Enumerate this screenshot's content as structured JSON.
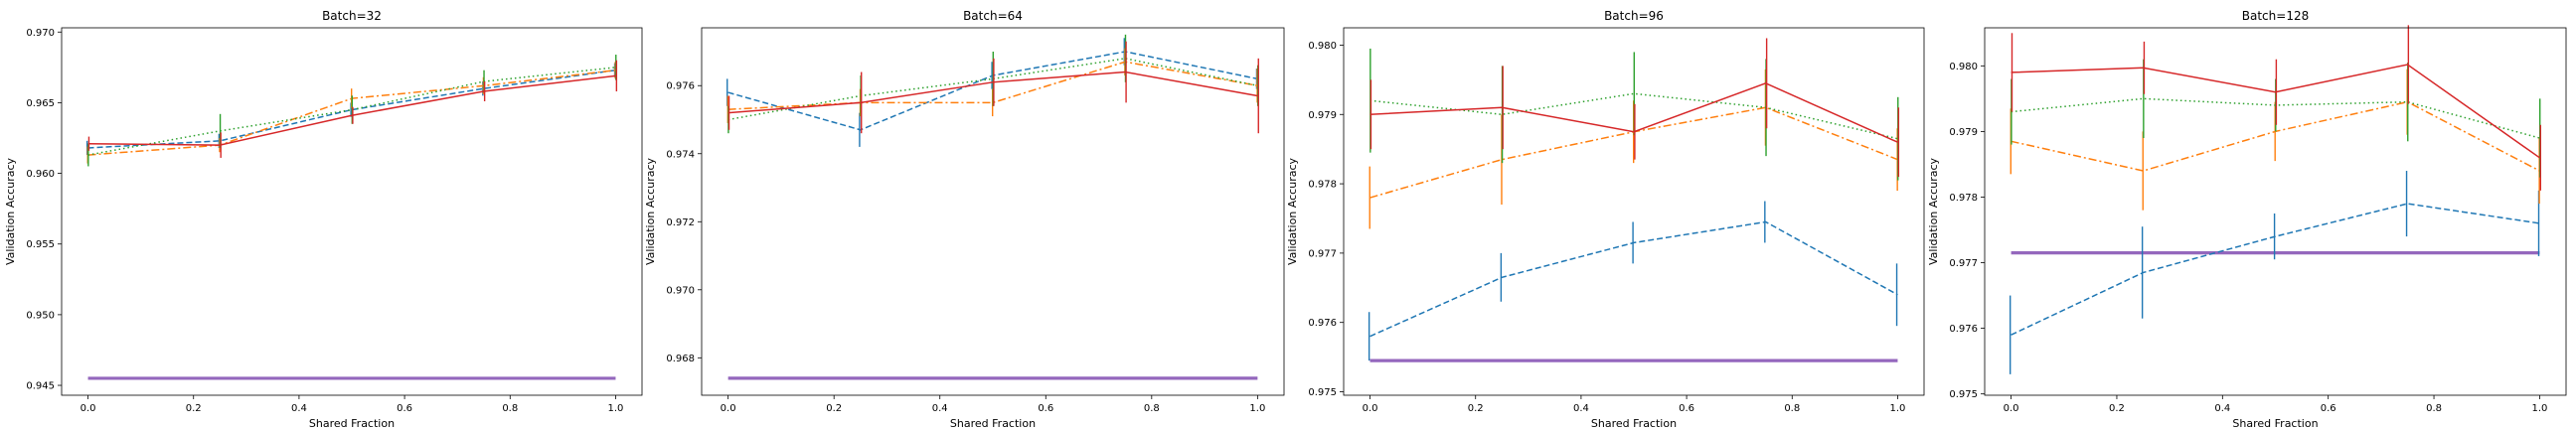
{
  "chart_data": [
    {
      "type": "line",
      "title": "Batch=32",
      "xlabel": "Shared Fraction",
      "ylabel": "Validation Accuracy",
      "x": [
        0.0,
        0.25,
        0.5,
        0.75,
        1.0
      ],
      "xticks": [
        "0.0",
        "0.2",
        "0.4",
        "0.6",
        "0.8",
        "1.0"
      ],
      "xtick_values": [
        0.0,
        0.2,
        0.4,
        0.6,
        0.8,
        1.0
      ],
      "yticks": [
        "0.945",
        "0.950",
        "0.955",
        "0.960",
        "0.965",
        "0.970"
      ],
      "ytick_values": [
        0.945,
        0.95,
        0.955,
        0.96,
        0.965,
        0.97
      ],
      "xlim": [
        -0.05,
        1.05
      ],
      "ylim": [
        0.9443,
        0.9703
      ],
      "baseline": 0.9455,
      "series": [
        {
          "color": "#1f77b4",
          "style": "dashed",
          "values": [
            0.9618,
            0.9623,
            0.9645,
            0.966,
            0.9673
          ],
          "errors": [
            0.0005,
            0.0005,
            0.0005,
            0.0005,
            0.0005
          ]
        },
        {
          "color": "#ff7f0e",
          "style": "dashdot",
          "values": [
            0.9613,
            0.962,
            0.9653,
            0.9662,
            0.9673
          ],
          "errors": [
            0.0006,
            0.0005,
            0.0007,
            0.0006,
            0.0006
          ]
        },
        {
          "color": "#2ca02c",
          "style": "dotted",
          "values": [
            0.9613,
            0.963,
            0.9645,
            0.9665,
            0.9675
          ],
          "errors": [
            0.0008,
            0.0012,
            0.001,
            0.0008,
            0.0009
          ]
        },
        {
          "color": "#d62728",
          "style": "solid",
          "values": [
            0.9621,
            0.962,
            0.9641,
            0.9658,
            0.9669
          ],
          "errors": [
            0.0005,
            0.0009,
            0.0006,
            0.0007,
            0.0011
          ]
        }
      ]
    },
    {
      "type": "line",
      "title": "Batch=64",
      "xlabel": "Shared Fraction",
      "ylabel": "Validation Accuracy",
      "x": [
        0.0,
        0.25,
        0.5,
        0.75,
        1.0
      ],
      "xticks": [
        "0.0",
        "0.2",
        "0.4",
        "0.6",
        "0.8",
        "1.0"
      ],
      "xtick_values": [
        0.0,
        0.2,
        0.4,
        0.6,
        0.8,
        1.0
      ],
      "yticks": [
        "0.968",
        "0.970",
        "0.972",
        "0.974",
        "0.976"
      ],
      "ytick_values": [
        0.968,
        0.97,
        0.972,
        0.974,
        0.976
      ],
      "xlim": [
        -0.05,
        1.05
      ],
      "ylim": [
        0.9669,
        0.9777
      ],
      "baseline": 0.9674,
      "series": [
        {
          "color": "#1f77b4",
          "style": "dashed",
          "values": [
            0.9758,
            0.9747,
            0.9763,
            0.977,
            0.9762
          ],
          "errors": [
            0.0004,
            0.0005,
            0.0004,
            0.0004,
            0.0003
          ]
        },
        {
          "color": "#ff7f0e",
          "style": "dashdot",
          "values": [
            0.9753,
            0.9755,
            0.9755,
            0.9767,
            0.976
          ],
          "errors": [
            0.0004,
            0.0004,
            0.0004,
            0.0004,
            0.0005
          ]
        },
        {
          "color": "#2ca02c",
          "style": "dotted",
          "values": [
            0.975,
            0.9757,
            0.9762,
            0.9768,
            0.976
          ],
          "errors": [
            0.0004,
            0.0006,
            0.0008,
            0.0007,
            0.0006
          ]
        },
        {
          "color": "#d62728",
          "style": "solid",
          "values": [
            0.9752,
            0.9755,
            0.9761,
            0.9764,
            0.9757
          ],
          "errors": [
            0.0005,
            0.0009,
            0.0007,
            0.0009,
            0.0011
          ]
        }
      ]
    },
    {
      "type": "line",
      "title": "Batch=96",
      "xlabel": "Shared Fraction",
      "ylabel": "Validation Accuracy",
      "x": [
        0.0,
        0.25,
        0.5,
        0.75,
        1.0
      ],
      "xticks": [
        "0.0",
        "0.2",
        "0.4",
        "0.6",
        "0.8",
        "1.0"
      ],
      "xtick_values": [
        0.0,
        0.2,
        0.4,
        0.6,
        0.8,
        1.0
      ],
      "yticks": [
        "0.975",
        "0.976",
        "0.977",
        "0.978",
        "0.979",
        "0.980"
      ],
      "ytick_values": [
        0.975,
        0.976,
        0.977,
        0.978,
        0.979,
        0.98
      ],
      "xlim": [
        -0.05,
        1.05
      ],
      "ylim": [
        0.97495,
        0.98025
      ],
      "baseline": 0.97545,
      "series": [
        {
          "color": "#1f77b4",
          "style": "dashed",
          "values": [
            0.9758,
            0.97665,
            0.97715,
            0.97745,
            0.9764
          ],
          "errors": [
            0.00035,
            0.00035,
            0.0003,
            0.0003,
            0.00045
          ]
        },
        {
          "color": "#ff7f0e",
          "style": "dashdot",
          "values": [
            0.9778,
            0.97835,
            0.97875,
            0.9791,
            0.97835
          ],
          "errors": [
            0.00045,
            0.00065,
            0.00045,
            0.00055,
            0.00045
          ]
        },
        {
          "color": "#2ca02c",
          "style": "dotted",
          "values": [
            0.9792,
            0.979,
            0.9793,
            0.9791,
            0.97865
          ],
          "errors": [
            0.00075,
            0.0007,
            0.0006,
            0.0007,
            0.0006
          ]
        },
        {
          "color": "#d62728",
          "style": "solid",
          "values": [
            0.979,
            0.9791,
            0.97875,
            0.97945,
            0.9786
          ],
          "errors": [
            0.0005,
            0.0006,
            0.0004,
            0.00065,
            0.0005
          ]
        }
      ]
    },
    {
      "type": "line",
      "title": "Batch=128",
      "xlabel": "Shared Fraction",
      "ylabel": "Validation Accuracy",
      "x": [
        0.0,
        0.25,
        0.5,
        0.75,
        1.0
      ],
      "xticks": [
        "0.0",
        "0.2",
        "0.4",
        "0.6",
        "0.8",
        "1.0"
      ],
      "xtick_values": [
        0.0,
        0.2,
        0.4,
        0.6,
        0.8,
        1.0
      ],
      "yticks": [
        "0.975",
        "0.976",
        "0.977",
        "0.978",
        "0.979",
        "0.980"
      ],
      "ytick_values": [
        0.975,
        0.976,
        0.977,
        0.978,
        0.979,
        0.98
      ],
      "xlim": [
        -0.05,
        1.05
      ],
      "ylim": [
        0.97498,
        0.98058
      ],
      "baseline": 0.97715,
      "series": [
        {
          "color": "#1f77b4",
          "style": "dashed",
          "values": [
            0.9759,
            0.97685,
            0.9774,
            0.9779,
            0.9776
          ],
          "errors": [
            0.0006,
            0.0007,
            0.00035,
            0.0005,
            0.0005
          ]
        },
        {
          "color": "#ff7f0e",
          "style": "dashdot",
          "values": [
            0.97885,
            0.9784,
            0.979,
            0.97945,
            0.9784
          ],
          "errors": [
            0.0005,
            0.0006,
            0.00045,
            0.0005,
            0.0005
          ]
        },
        {
          "color": "#2ca02c",
          "style": "dotted",
          "values": [
            0.9793,
            0.9795,
            0.9794,
            0.97945,
            0.9789
          ],
          "errors": [
            0.0005,
            0.0006,
            0.0004,
            0.0006,
            0.0006
          ]
        },
        {
          "color": "#d62728",
          "style": "solid",
          "values": [
            0.9799,
            0.97997,
            0.9796,
            0.98002,
            0.9786
          ],
          "errors": [
            0.0006,
            0.0004,
            0.0005,
            0.0006,
            0.0005
          ]
        }
      ]
    }
  ]
}
